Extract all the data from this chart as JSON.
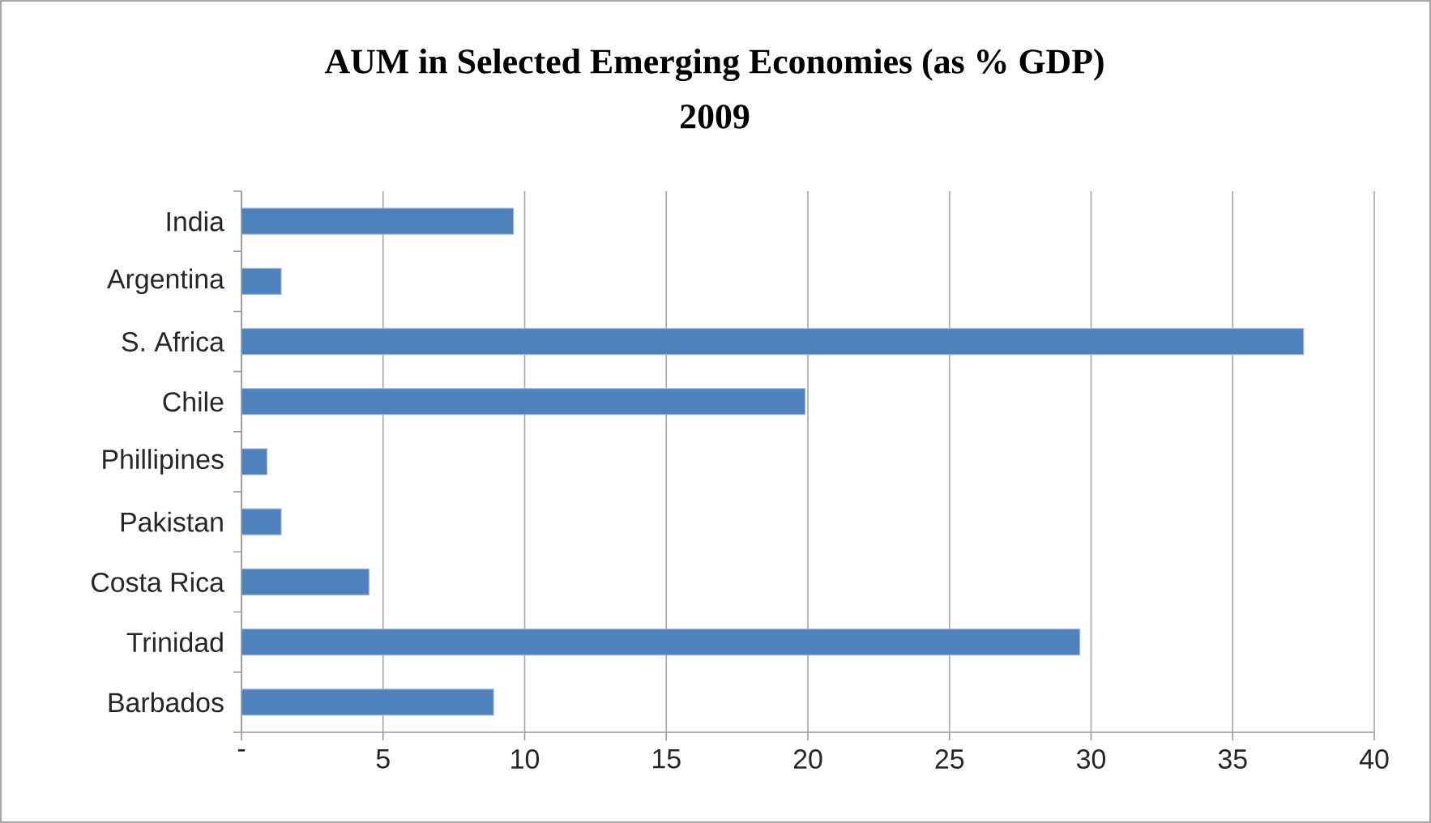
{
  "chart_data": {
    "type": "bar",
    "orientation": "horizontal",
    "title": "AUM in Selected Emerging Economies (as % GDP)",
    "subtitle": "2009",
    "categories": [
      "India",
      "Argentina",
      "S. Africa",
      "Chile",
      "Phillipines",
      "Pakistan",
      "Costa Rica",
      "Trinidad",
      "Barbados"
    ],
    "values": [
      9.6,
      1.4,
      37.5,
      19.9,
      0.9,
      1.4,
      4.5,
      29.6,
      8.9
    ],
    "color": "#4f81bd",
    "xlim": [
      0,
      40
    ],
    "xticks": [
      {
        "value": 0,
        "label": "-"
      },
      5,
      10,
      15,
      20,
      25,
      30,
      35,
      40
    ],
    "grid": "x"
  }
}
